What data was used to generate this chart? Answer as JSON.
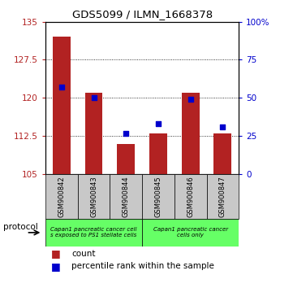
{
  "title": "GDS5099 / ILMN_1668378",
  "categories": [
    "GSM900842",
    "GSM900843",
    "GSM900844",
    "GSM900845",
    "GSM900846",
    "GSM900847"
  ],
  "count_values": [
    132.0,
    121.0,
    111.0,
    113.0,
    121.0,
    113.0
  ],
  "percentile_values": [
    57.0,
    50.0,
    27.0,
    33.0,
    49.0,
    31.0
  ],
  "ylim_left": [
    105,
    135
  ],
  "ylim_right": [
    0,
    100
  ],
  "yticks_left": [
    105,
    112.5,
    120,
    127.5,
    135
  ],
  "ytick_labels_left": [
    "105",
    "112.5",
    "120",
    "127.5",
    "135"
  ],
  "yticks_right": [
    0,
    25,
    50,
    75,
    100
  ],
  "ytick_labels_right": [
    "0",
    "25",
    "50",
    "75",
    "100%"
  ],
  "bar_color": "#B22222",
  "percentile_color": "#0000CC",
  "bar_bottom": 105,
  "group1_label": "Capan1 pancreatic cancer cell\ns exposed to PS1 stellate cells",
  "group2_label": "Capan1 pancreatic cancer\ncells only",
  "group1_indices": [
    0,
    1,
    2
  ],
  "group2_indices": [
    3,
    4,
    5
  ],
  "group_color": "#66FF66",
  "xticklabel_bg": "#C8C8C8",
  "protocol_label": "protocol",
  "legend_count_label": "count",
  "legend_percentile_label": "percentile rank within the sample",
  "title_fontsize": 9.5,
  "axis_fontsize": 7.5,
  "label_fontsize": 6.0,
  "legend_fontsize": 7.5
}
